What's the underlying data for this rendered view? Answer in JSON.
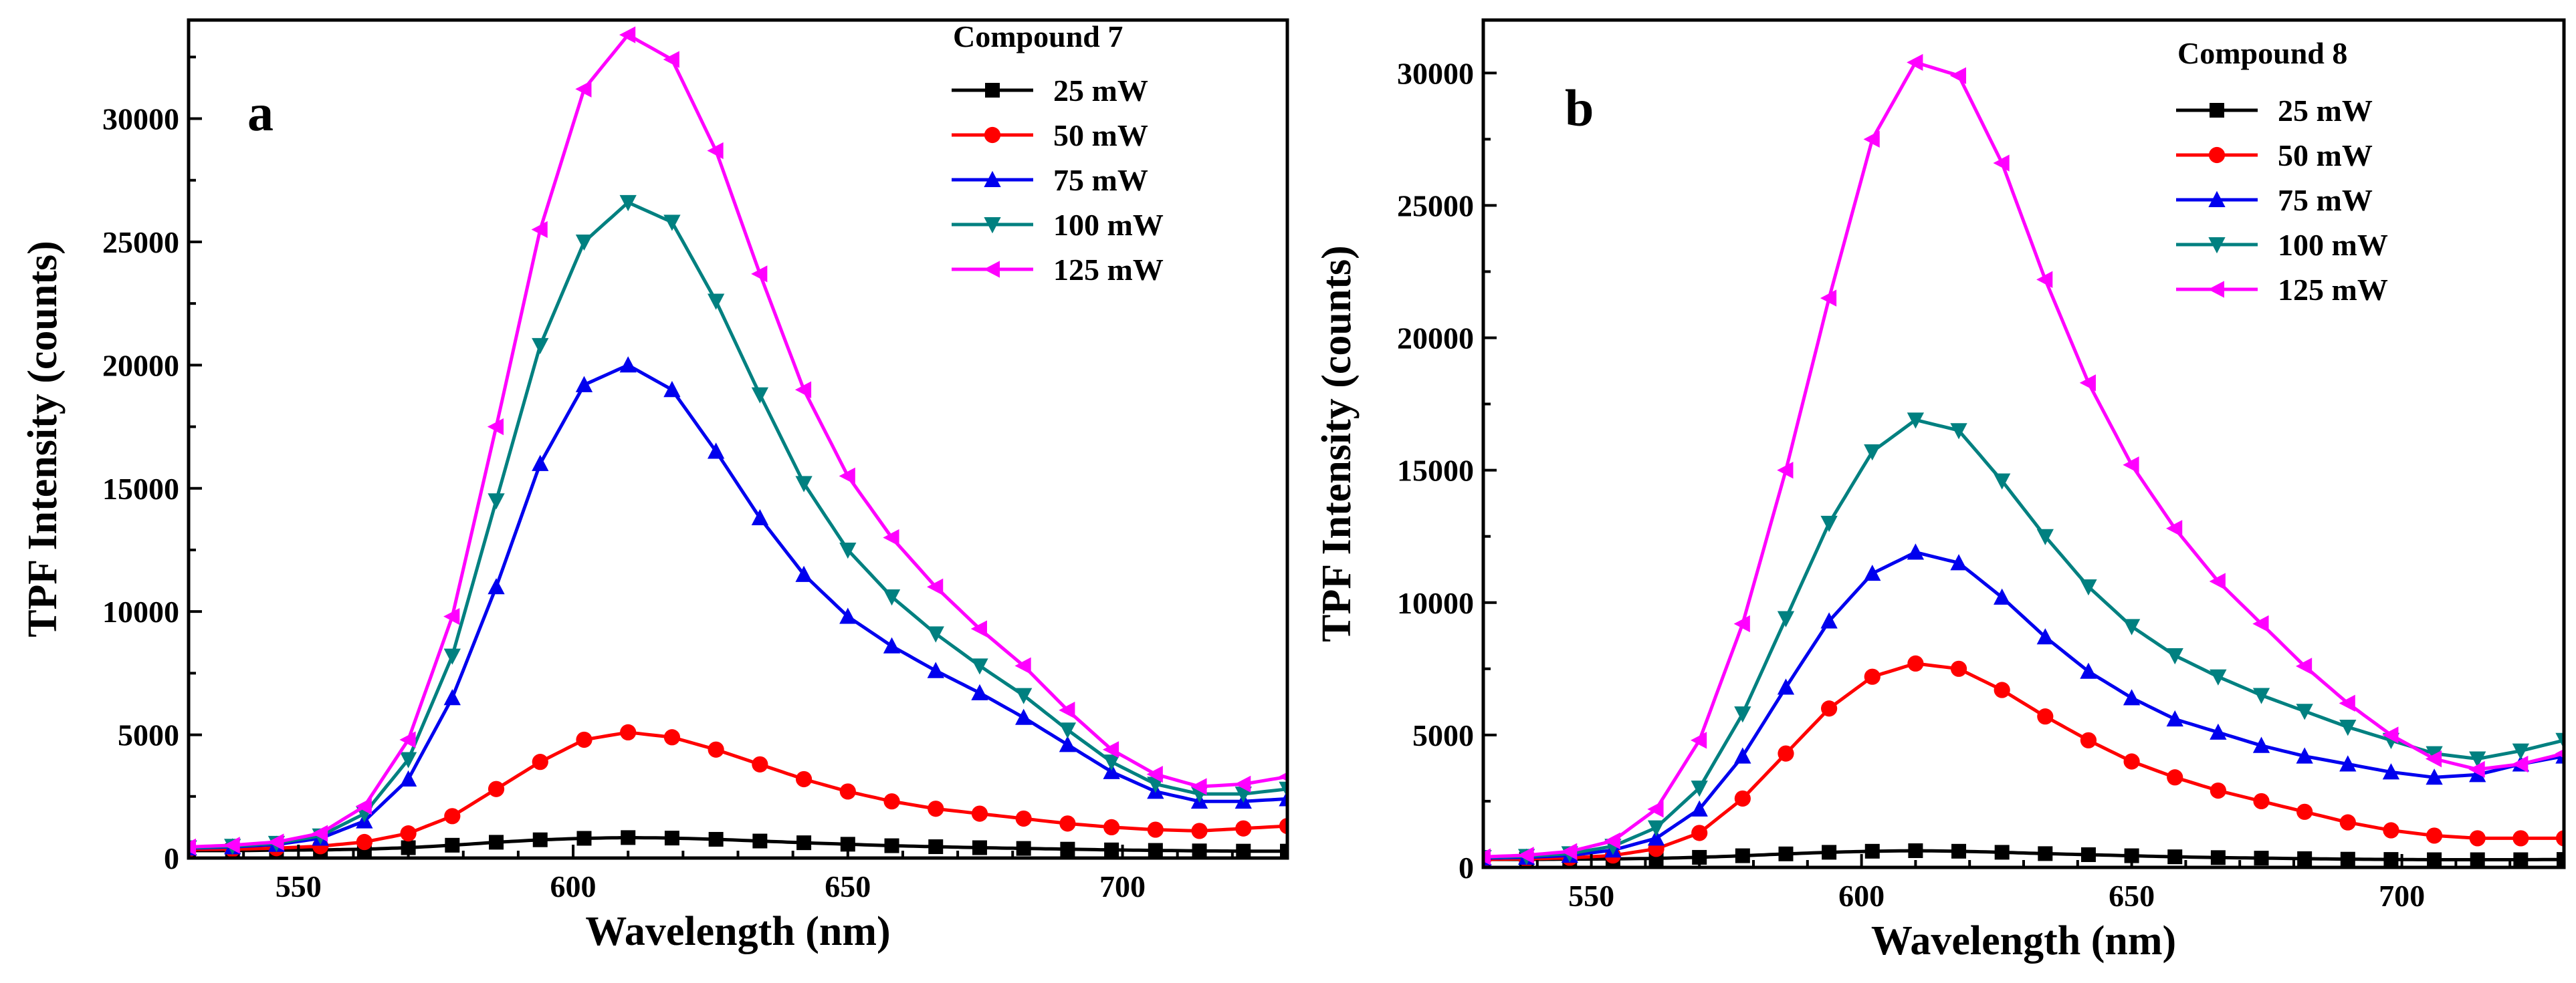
{
  "chart_data": [
    {
      "type": "line",
      "panel_label": "a",
      "legend_title": "Compound 7",
      "xlabel": "Wavelength (nm)",
      "ylabel": "TPF Intensity (counts)",
      "xlim": [
        530,
        730
      ],
      "ylim": [
        0,
        34000
      ],
      "xticks": [
        550,
        600,
        650,
        700
      ],
      "yticks": [
        0,
        5000,
        10000,
        15000,
        20000,
        25000,
        30000
      ],
      "xtick_labels": [
        "550",
        "600",
        "650",
        "700"
      ],
      "ytick_labels": [
        "0",
        "5000",
        "10000",
        "15000",
        "20000",
        "25000",
        "30000"
      ],
      "x": [
        530,
        538,
        546,
        554,
        562,
        570,
        578,
        586,
        594,
        602,
        610,
        618,
        626,
        634,
        642,
        650,
        658,
        666,
        674,
        682,
        690,
        698,
        706,
        714,
        722,
        730
      ],
      "series": [
        {
          "name": "25 mW",
          "color": "#000000",
          "marker": "square",
          "values": [
            300,
            300,
            320,
            330,
            360,
            420,
            520,
            640,
            740,
            800,
            830,
            810,
            760,
            690,
            620,
            560,
            500,
            460,
            420,
            390,
            360,
            330,
            310,
            290,
            280,
            280
          ]
        },
        {
          "name": "50 mW",
          "color": "#ff0000",
          "marker": "circle",
          "values": [
            350,
            360,
            400,
            480,
            650,
            1000,
            1700,
            2800,
            3900,
            4800,
            5100,
            4900,
            4400,
            3800,
            3200,
            2700,
            2300,
            2000,
            1800,
            1600,
            1400,
            1250,
            1150,
            1100,
            1200,
            1300
          ]
        },
        {
          "name": "75 mW",
          "color": "#0000ee",
          "marker": "triangle-up",
          "values": [
            400,
            450,
            550,
            800,
            1500,
            3200,
            6500,
            11000,
            16000,
            19200,
            20000,
            19000,
            16500,
            13800,
            11500,
            9800,
            8600,
            7600,
            6700,
            5700,
            4600,
            3500,
            2700,
            2300,
            2300,
            2400
          ]
        },
        {
          "name": "100 mW",
          "color": "#008080",
          "marker": "triangle-down",
          "values": [
            420,
            480,
            600,
            900,
            1800,
            4000,
            8200,
            14500,
            20800,
            25000,
            26600,
            25800,
            22600,
            18800,
            15200,
            12500,
            10600,
            9100,
            7800,
            6600,
            5200,
            3900,
            3000,
            2600,
            2600,
            2800
          ]
        },
        {
          "name": "125 mW",
          "color": "#ff00ff",
          "marker": "triangle-left",
          "values": [
            450,
            520,
            650,
            1000,
            2100,
            4800,
            9800,
            17500,
            25500,
            31200,
            33400,
            32400,
            28700,
            23700,
            19000,
            15500,
            13000,
            11000,
            9300,
            7800,
            6000,
            4400,
            3400,
            2900,
            3000,
            3300
          ]
        }
      ]
    },
    {
      "type": "line",
      "panel_label": "b",
      "legend_title": "Compound 8",
      "xlabel": "Wavelength (nm)",
      "ylabel": "TPF Intensity (counts)",
      "xlim": [
        530,
        730
      ],
      "ylim": [
        0,
        32000
      ],
      "xticks": [
        550,
        600,
        650,
        700
      ],
      "yticks": [
        0,
        5000,
        10000,
        15000,
        20000,
        25000,
        30000
      ],
      "xtick_labels": [
        "550",
        "600",
        "650",
        "700"
      ],
      "ytick_labels": [
        "0",
        "5000",
        "10000",
        "15000",
        "20000",
        "25000",
        "30000"
      ],
      "x": [
        530,
        538,
        546,
        554,
        562,
        570,
        578,
        586,
        594,
        602,
        610,
        618,
        626,
        634,
        642,
        650,
        658,
        666,
        674,
        682,
        690,
        698,
        706,
        714,
        722,
        730
      ],
      "series": [
        {
          "name": "25 mW",
          "color": "#000000",
          "marker": "square",
          "values": [
            300,
            300,
            310,
            320,
            340,
            380,
            440,
            510,
            570,
            610,
            630,
            610,
            570,
            520,
            480,
            440,
            400,
            370,
            350,
            330,
            310,
            300,
            290,
            290,
            290,
            300
          ]
        },
        {
          "name": "50 mW",
          "color": "#ff0000",
          "marker": "circle",
          "values": [
            300,
            320,
            360,
            450,
            700,
            1300,
            2600,
            4300,
            6000,
            7200,
            7700,
            7500,
            6700,
            5700,
            4800,
            4000,
            3400,
            2900,
            2500,
            2100,
            1700,
            1400,
            1200,
            1100,
            1100,
            1100
          ]
        },
        {
          "name": "75 mW",
          "color": "#0000ee",
          "marker": "triangle-up",
          "values": [
            350,
            380,
            450,
            650,
            1100,
            2200,
            4200,
            6800,
            9300,
            11100,
            11900,
            11500,
            10200,
            8700,
            7400,
            6400,
            5600,
            5100,
            4600,
            4200,
            3900,
            3600,
            3400,
            3500,
            3900,
            4200
          ]
        },
        {
          "name": "100 mW",
          "color": "#008080",
          "marker": "triangle-down",
          "values": [
            380,
            420,
            520,
            800,
            1500,
            3000,
            5800,
            9400,
            13000,
            15700,
            16900,
            16500,
            14600,
            12500,
            10600,
            9100,
            8000,
            7200,
            6500,
            5900,
            5300,
            4800,
            4300,
            4100,
            4400,
            4800
          ]
        },
        {
          "name": "125 mW",
          "color": "#ff00ff",
          "marker": "triangle-left",
          "values": [
            400,
            460,
            600,
            1000,
            2200,
            4800,
            9200,
            15000,
            21500,
            27500,
            30400,
            29900,
            26600,
            22200,
            18300,
            15200,
            12800,
            10800,
            9200,
            7600,
            6200,
            5000,
            4100,
            3700,
            3900,
            4300
          ]
        }
      ]
    }
  ]
}
